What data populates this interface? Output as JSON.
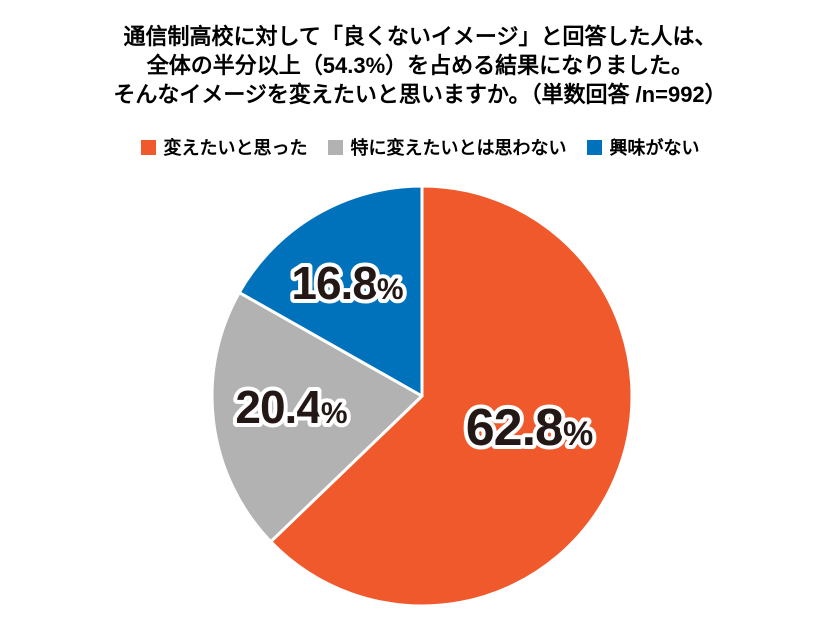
{
  "title": {
    "line1": "通信制高校に対して「良くないイメージ」と回答した人は、",
    "line2": "全体の半分以上（54.3%）を占める結果になりました。",
    "line3": "そんなイメージを変えたいと思いますか。（単数回答 /n=992）"
  },
  "chart_data": {
    "type": "pie",
    "title": "通信制高校に対して「良くないイメージ」と回答した人は、全体の半分以上（54.3%）を占める結果になりました。そんなイメージを変えたいと思いますか。（単数回答 /n=992）",
    "sample_note": "単数回答 /n=992",
    "categories": [
      "変えたいと思った",
      "特に変えたいとは思わない",
      "興味がない"
    ],
    "values": [
      62.8,
      20.4,
      16.8
    ],
    "slice_labels": [
      {
        "value": "62.8",
        "unit": "%"
      },
      {
        "value": "20.4",
        "unit": "%"
      },
      {
        "value": "16.8",
        "unit": "%"
      }
    ],
    "colors": [
      "#F0592B",
      "#B2B2B2",
      "#0072BC"
    ],
    "start_angle_deg": 0,
    "direction": "clockwise",
    "legend_position": "top",
    "label_text_color": "#231815",
    "label_outline_color": "#ffffff",
    "separator_color": "#ffffff",
    "background_color": "#ffffff"
  }
}
